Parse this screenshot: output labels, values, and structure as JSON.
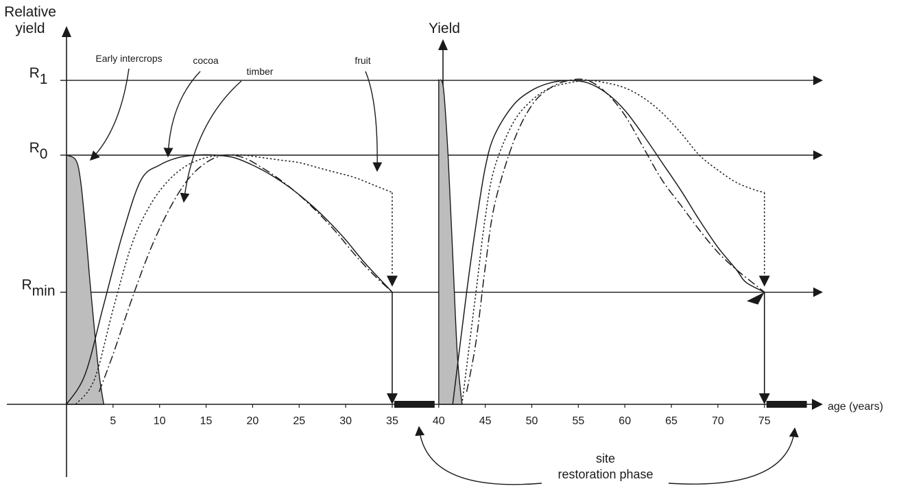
{
  "chart_data": {
    "type": "line",
    "y_axis_title": "Relative yield",
    "second_y_axis_title": "Yield",
    "x_axis_title": "age (years)",
    "x_ticks": [
      5,
      10,
      15,
      20,
      25,
      30,
      35,
      40,
      45,
      50,
      55,
      60,
      65,
      70,
      75
    ],
    "xlim": [
      0,
      80
    ],
    "ylim": [
      0,
      1.35
    ],
    "levels": [
      {
        "main": "R",
        "sub": "1",
        "value": 1.3
      },
      {
        "main": "R",
        "sub": "0",
        "value": 1.0
      },
      {
        "main": "R",
        "sub": "min",
        "value": 0.45
      }
    ],
    "series": [
      {
        "key": "early_intercrops",
        "style": "filled-grey",
        "cycles": [
          {
            "x": [
              0,
              1,
              1.5,
              2,
              2.5,
              3,
              3.5,
              4
            ],
            "y": [
              1.0,
              0.98,
              0.9,
              0.72,
              0.5,
              0.3,
              0.12,
              0
            ]
          },
          {
            "x": [
              40,
              40.5,
              41,
              41.5,
              42,
              42.5
            ],
            "y": [
              1.3,
              1.27,
              1.0,
              0.6,
              0.2,
              0
            ]
          }
        ]
      },
      {
        "key": "cocoa",
        "style": "solid",
        "cycles": [
          {
            "x": [
              0,
              2,
              4,
              6,
              8,
              10,
              12,
              14,
              16,
              18,
              20,
              22,
              24,
              26,
              28,
              30,
              32,
              35
            ],
            "y": [
              0,
              0.12,
              0.4,
              0.68,
              0.9,
              0.96,
              0.99,
              1.0,
              1.0,
              0.99,
              0.96,
              0.92,
              0.87,
              0.81,
              0.74,
              0.66,
              0.57,
              0.45
            ]
          },
          {
            "x": [
              41.5,
              43,
              44,
              45,
              46,
              48,
              50,
              52,
              54,
              56,
              58,
              60,
              62,
              64,
              66,
              68,
              70,
              72,
              73,
              75
            ],
            "y": [
              0,
              0.45,
              0.72,
              0.95,
              1.08,
              1.2,
              1.26,
              1.29,
              1.3,
              1.29,
              1.25,
              1.18,
              1.08,
              0.97,
              0.86,
              0.74,
              0.63,
              0.54,
              0.49,
              0.45
            ]
          }
        ]
      },
      {
        "key": "fruit",
        "style": "dotted",
        "cycles": [
          {
            "x": [
              1,
              3,
              5,
              7,
              9,
              11,
              13,
              15,
              17,
              19,
              21,
              23,
              25,
              27,
              29,
              31,
              33,
              35
            ],
            "y": [
              0,
              0.1,
              0.38,
              0.64,
              0.8,
              0.9,
              0.96,
              0.99,
              1.0,
              1.0,
              0.99,
              0.98,
              0.97,
              0.95,
              0.93,
              0.91,
              0.88,
              0.85
            ]
          },
          {
            "x": [
              42.5,
              44,
              45,
              46,
              48,
              50,
              52,
              54,
              56,
              58,
              60,
              62,
              64,
              66,
              68,
              70,
              72,
              74,
              75
            ],
            "y": [
              0,
              0.45,
              0.75,
              0.95,
              1.13,
              1.22,
              1.27,
              1.29,
              1.3,
              1.29,
              1.27,
              1.23,
              1.17,
              1.09,
              1.0,
              0.94,
              0.89,
              0.86,
              0.85
            ]
          }
        ]
      },
      {
        "key": "timber",
        "style": "dash-dot",
        "cycles": [
          {
            "x": [
              3.5,
              5,
              7,
              9,
              11,
              13,
              15,
              17,
              19,
              21,
              23,
              25,
              27,
              29,
              31,
              33,
              35
            ],
            "y": [
              0.05,
              0.2,
              0.42,
              0.62,
              0.78,
              0.9,
              0.97,
              1.0,
              0.99,
              0.95,
              0.9,
              0.84,
              0.77,
              0.69,
              0.6,
              0.52,
              0.45
            ]
          },
          {
            "x": [
              43,
              44,
              45,
              46,
              48,
              50,
              52,
              54,
              56,
              58,
              60,
              62,
              64,
              66,
              68,
              70,
              72,
              74,
              75
            ],
            "y": [
              0.05,
              0.25,
              0.55,
              0.8,
              1.05,
              1.2,
              1.27,
              1.3,
              1.3,
              1.25,
              1.16,
              1.03,
              0.9,
              0.8,
              0.7,
              0.61,
              0.54,
              0.48,
              0.45
            ]
          }
        ]
      }
    ],
    "annotations": [
      {
        "key": "early_intercrops",
        "text": "Early intercrops"
      },
      {
        "key": "cocoa",
        "text": "cocoa"
      },
      {
        "key": "timber",
        "text": "timber"
      },
      {
        "key": "fruit",
        "text": "fruit"
      }
    ],
    "restoration_phases": [
      [
        35,
        40
      ],
      [
        75,
        80
      ]
    ],
    "phase_label": [
      "site",
      "restoration phase"
    ],
    "colors": {
      "line": "#1a1a1a",
      "fill": "#bdbdbd"
    }
  }
}
